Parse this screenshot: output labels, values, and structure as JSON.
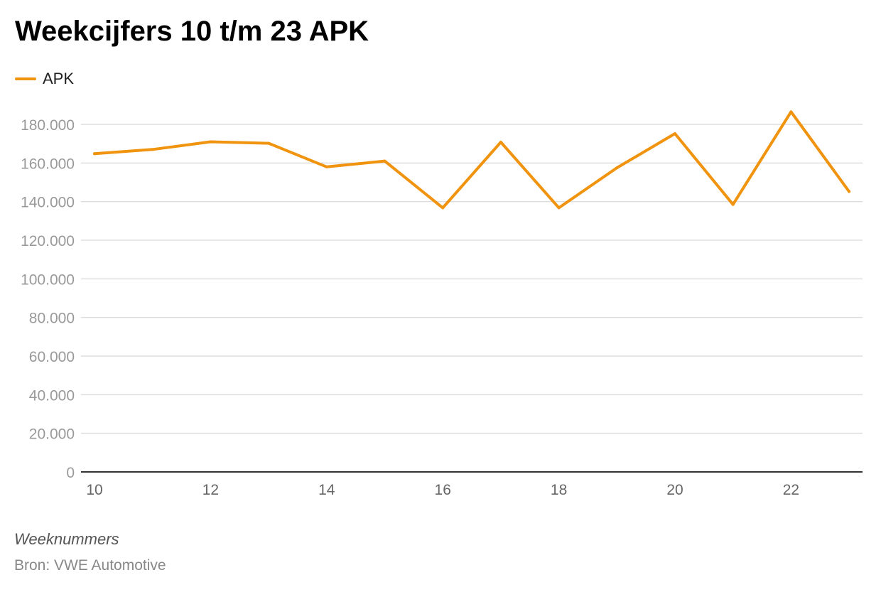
{
  "title": "Weekcijfers 10 t/m 23 APK",
  "footer": {
    "xlabel": "Weeknummers",
    "source": "Bron: VWE Automotive"
  },
  "colors": {
    "series": "#f0930f",
    "grid": "#dddddd",
    "axis": "#333333",
    "tick_text": "#999999",
    "x_tick_text": "#666666"
  },
  "chart_data": {
    "type": "line",
    "x": [
      10,
      11,
      12,
      13,
      14,
      15,
      16,
      17,
      18,
      19,
      20,
      21,
      22,
      23
    ],
    "x_ticks": [
      10,
      12,
      14,
      16,
      18,
      20,
      22
    ],
    "x_tick_labels": [
      "10",
      "12",
      "14",
      "16",
      "18",
      "20",
      "22"
    ],
    "series": [
      {
        "name": "APK",
        "values": [
          164800,
          167000,
          171000,
          170200,
          158000,
          161000,
          136800,
          170800,
          136800,
          157500,
          175200,
          138500,
          186500,
          145200
        ]
      }
    ],
    "ylim": [
      0,
      180000
    ],
    "y_ticks": [
      0,
      20000,
      40000,
      60000,
      80000,
      100000,
      120000,
      140000,
      160000,
      180000
    ],
    "y_tick_labels": [
      "0",
      "20.000",
      "40.000",
      "60.000",
      "80.000",
      "100.000",
      "120.000",
      "140.000",
      "160.000",
      "180.000"
    ],
    "xlabel": "Weeknummers",
    "ylabel": "",
    "grid": true,
    "legend": "top-left"
  }
}
